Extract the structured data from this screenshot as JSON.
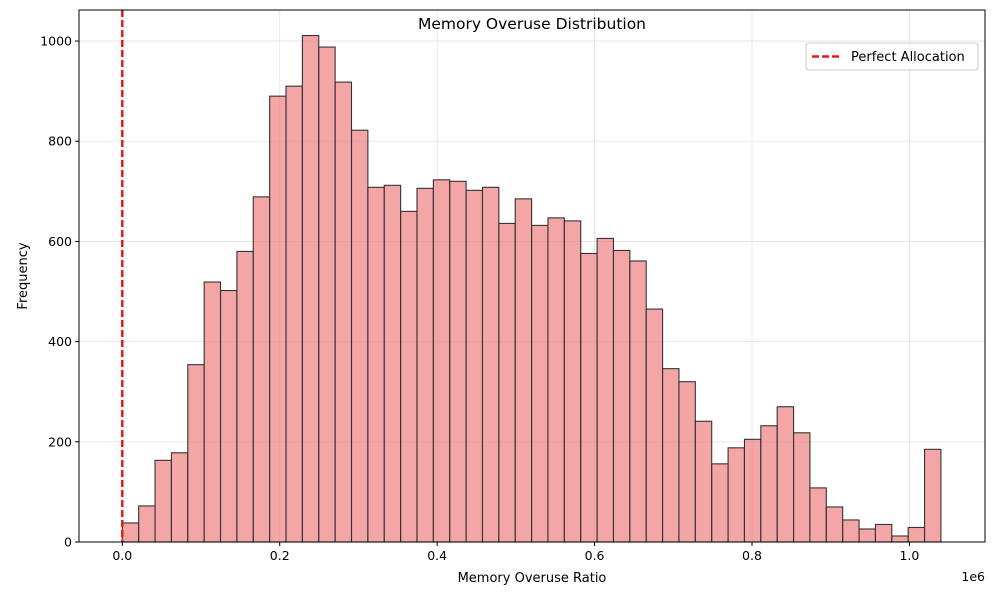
{
  "chart_data": {
    "type": "bar",
    "title": "Memory Overuse Distribution",
    "xlabel": "Memory Overuse Ratio",
    "ylabel": "Frequency",
    "x_offset_label": "1e6",
    "x_scale": 1000000,
    "xlim": [
      -55000,
      1096000
    ],
    "ylim": [
      0,
      1062
    ],
    "x_ticks": [
      0,
      200000,
      400000,
      600000,
      800000,
      1000000
    ],
    "x_tick_labels": [
      "0.0",
      "0.2",
      "0.4",
      "0.6",
      "0.8",
      "1.0"
    ],
    "y_ticks": [
      0,
      200,
      400,
      600,
      800,
      1000
    ],
    "y_tick_labels": [
      "0",
      "200",
      "400",
      "600",
      "800",
      "1000"
    ],
    "grid": true,
    "bar_color": "#f08080",
    "bar_alpha": 0.7,
    "bar_edge_color": "#333333",
    "bins": {
      "start": 0,
      "width": 20800,
      "counts": [
        38,
        72,
        163,
        178,
        354,
        519,
        502,
        580,
        689,
        890,
        910,
        1011,
        988,
        918,
        822,
        708,
        712,
        660,
        706,
        723,
        720,
        702,
        708,
        636,
        685,
        632,
        647,
        641,
        576,
        606,
        582,
        561,
        465,
        346,
        320,
        241,
        156,
        188,
        205,
        232,
        270,
        218,
        108,
        70,
        44,
        26,
        35,
        12,
        29,
        185
      ]
    },
    "reference_line": {
      "name": "Perfect Allocation",
      "x": 0,
      "color": "#e8191a",
      "style": "dashed"
    },
    "legend": {
      "placement": "top-right",
      "entries": [
        "Perfect Allocation"
      ]
    }
  }
}
